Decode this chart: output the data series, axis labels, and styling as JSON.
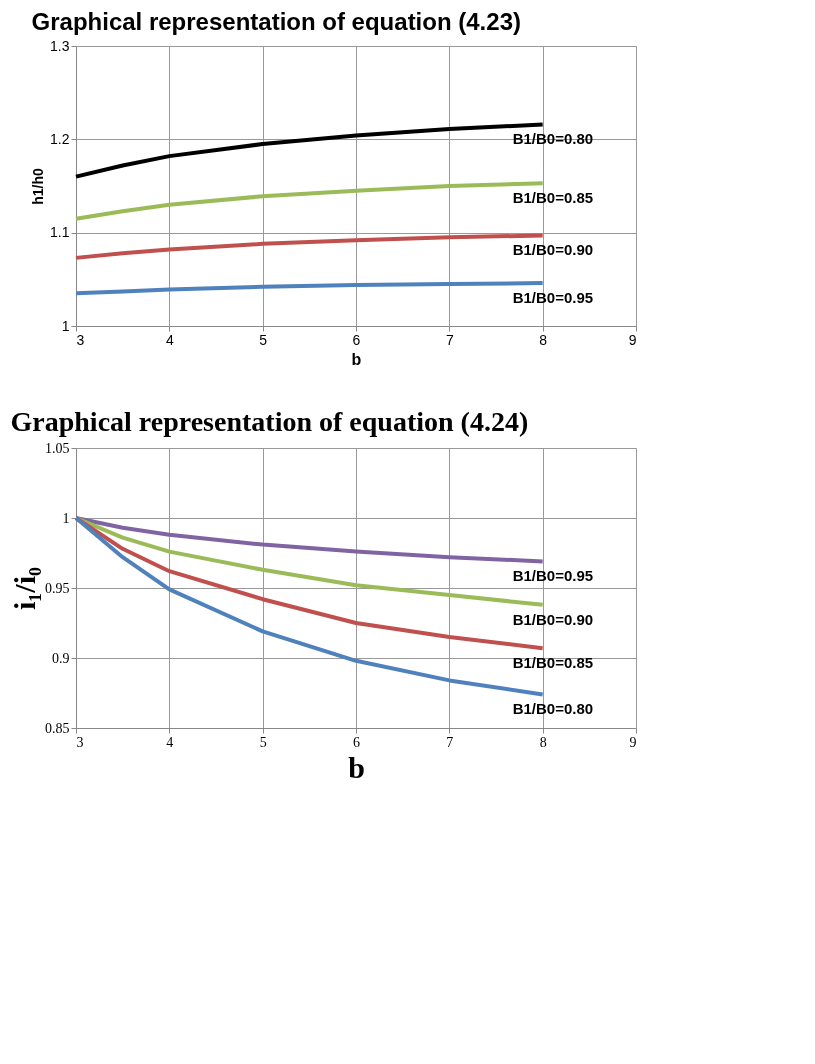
{
  "chart_data": [
    {
      "type": "line",
      "title": "Graphical representation of equation (4.23)",
      "xlabel": "b",
      "ylabel": "h1/h0",
      "x": [
        3,
        3.5,
        4,
        5,
        6,
        7,
        8
      ],
      "xlim": [
        3,
        9
      ],
      "xticks": [
        3,
        4,
        5,
        6,
        7,
        8,
        9
      ],
      "ylim": [
        1,
        1.3
      ],
      "yticks": [
        {
          "value": 1,
          "label": "1"
        },
        1.1,
        1.2,
        1.3
      ],
      "grid": true,
      "legend": false,
      "marker": "none",
      "line_style": "solid",
      "series": [
        {
          "name": "B1/B0=0.80",
          "color": "#000000",
          "values": [
            1.16,
            1.172,
            1.182,
            1.195,
            1.204,
            1.211,
            1.216
          ]
        },
        {
          "name": "B1/B0=0.85",
          "color": "#9bbb59",
          "values": [
            1.115,
            1.123,
            1.13,
            1.139,
            1.145,
            1.15,
            1.153
          ]
        },
        {
          "name": "B1/B0=0.90",
          "color": "#c0504d",
          "values": [
            1.073,
            1.078,
            1.082,
            1.088,
            1.092,
            1.095,
            1.097
          ]
        },
        {
          "name": "B1/B0=0.95",
          "color": "#4f81bd",
          "values": [
            1.035,
            1.037,
            1.039,
            1.042,
            1.044,
            1.045,
            1.046
          ]
        }
      ]
    },
    {
      "type": "line",
      "title": "Graphical representation of equation (4.24)",
      "xlabel": "b",
      "ylabel": "i₁/i₀",
      "x": [
        3,
        3.5,
        4,
        5,
        6,
        7,
        8
      ],
      "xlim": [
        3,
        9
      ],
      "xticks": [
        3,
        4,
        5,
        6,
        7,
        8,
        9
      ],
      "ylim": [
        0.85,
        1.05
      ],
      "yticks": [
        0.85,
        0.9,
        0.95,
        {
          "value": 1,
          "label": "1"
        },
        1.05
      ],
      "grid": true,
      "legend": false,
      "marker": "none",
      "line_style": "solid",
      "series": [
        {
          "name": "B1/B0=0.95",
          "color": "#8064a2",
          "values": [
            1,
            0.993,
            0.988,
            0.981,
            0.976,
            0.972,
            0.969
          ]
        },
        {
          "name": "B1/B0=0.90",
          "color": "#9bbb59",
          "values": [
            1,
            0.986,
            0.976,
            0.963,
            0.952,
            0.945,
            0.938
          ]
        },
        {
          "name": "B1/B0=0.85",
          "color": "#c0504d",
          "values": [
            1,
            0.978,
            0.962,
            0.942,
            0.925,
            0.915,
            0.907
          ]
        },
        {
          "name": "B1/B0=0.80",
          "color": "#4f81bd",
          "values": [
            1,
            0.972,
            0.949,
            0.919,
            0.898,
            0.884,
            0.874
          ]
        }
      ]
    }
  ]
}
